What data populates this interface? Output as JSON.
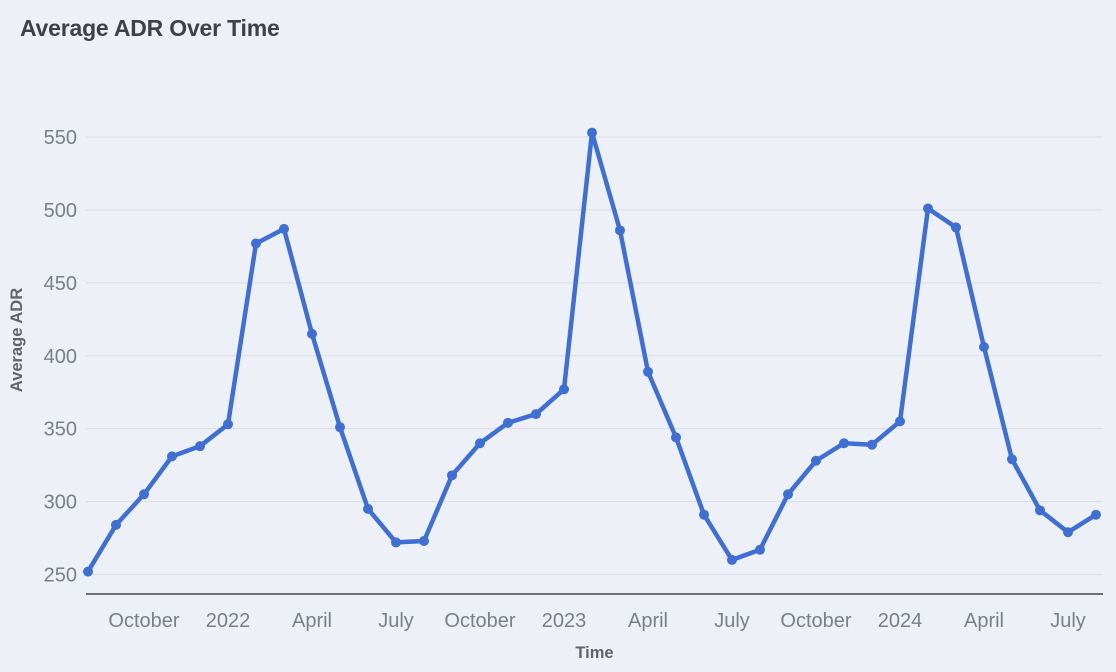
{
  "colors": {
    "background": "#edf0f6",
    "series": "#3d6fd6",
    "title_text": "#3e4248"
  },
  "chart_data": {
    "type": "line",
    "title": "Average ADR Over Time",
    "xlabel": "Time",
    "ylabel": "Average ADR",
    "grid": true,
    "legend": false,
    "ylim": [
      250,
      550
    ],
    "y_ticks": [
      250,
      300,
      350,
      400,
      450,
      500,
      550
    ],
    "x": [
      "Aug 2021",
      "Sep 2021",
      "Oct 2021",
      "Nov 2021",
      "Dec 2021",
      "Jan 2022",
      "Feb 2022",
      "Mar 2022",
      "Apr 2022",
      "May 2022",
      "Jun 2022",
      "Jul 2022",
      "Aug 2022",
      "Sep 2022",
      "Oct 2022",
      "Nov 2022",
      "Dec 2022",
      "Jan 2023",
      "Feb 2023",
      "Mar 2023",
      "Apr 2023",
      "May 2023",
      "Jun 2023",
      "Jul 2023",
      "Aug 2023",
      "Sep 2023",
      "Oct 2023",
      "Nov 2023",
      "Dec 2023",
      "Jan 2024",
      "Feb 2024",
      "Mar 2024",
      "Apr 2024",
      "May 2024",
      "Jun 2024",
      "Jul 2024",
      "Aug 2024"
    ],
    "values": [
      252,
      284,
      305,
      331,
      338,
      353,
      477,
      487,
      415,
      351,
      295,
      272,
      273,
      318,
      340,
      354,
      360,
      377,
      553,
      486,
      389,
      344,
      291,
      260,
      267,
      305,
      328,
      340,
      339,
      355,
      501,
      488,
      406,
      329,
      294,
      279,
      291
    ],
    "x_tick_indices": [
      2,
      5,
      8,
      11,
      14,
      17,
      20,
      23,
      26,
      29,
      32,
      35
    ],
    "x_tick_labels": [
      "October",
      "2022",
      "April",
      "July",
      "October",
      "2023",
      "April",
      "July",
      "October",
      "2024",
      "April",
      "July"
    ],
    "series_color": "#3d6fd6"
  }
}
